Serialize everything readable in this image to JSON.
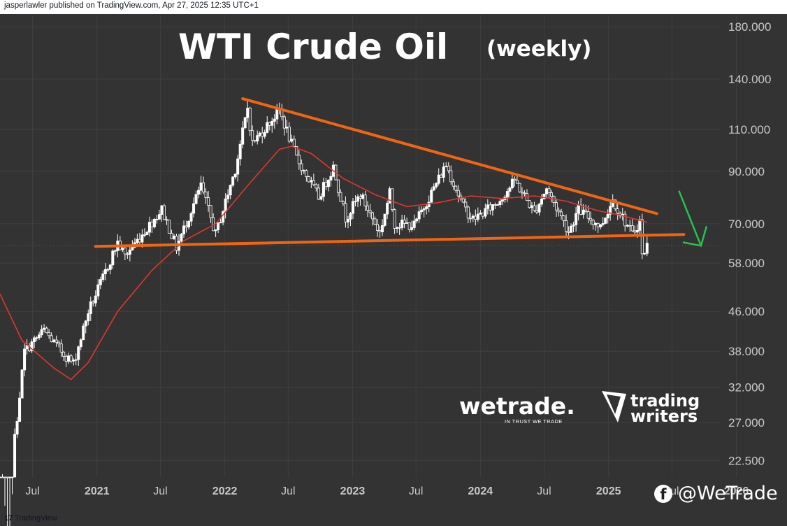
{
  "publisher": "jasperlawler published on TradingView.com, Apr 27, 2025 12:35 UTC+1",
  "footer": {
    "logo": "17",
    "brand": "TradingView"
  },
  "social": {
    "icon": "facebook-icon",
    "handle": "@WeTrade"
  },
  "logos": {
    "wetrade": {
      "name": "wetrade.",
      "tagline": "IN TRUST WE TRADE"
    },
    "trading_writers": {
      "line1": "trading",
      "line2": "writers"
    }
  },
  "colors": {
    "background": "#333333",
    "candle": "#ffffff",
    "ma": "#e0362b",
    "trendline": "#f06514",
    "arrow": "#27c24c",
    "axis_text": "#c8c8c8"
  },
  "chart_data": {
    "type": "candlestick",
    "title": "WTI Crude Oil",
    "subtitle": "(weekly)",
    "scale": "log",
    "ylim": [
      20.8,
      190
    ],
    "y_ticks": [
      22.5,
      27,
      32,
      38,
      46,
      58,
      70,
      90,
      110,
      140,
      180
    ],
    "y_tick_labels": [
      "22.500",
      "27.000",
      "32.000",
      "38.000",
      "46.000",
      "58.000",
      "70.000",
      "90.000",
      "110.000",
      "140.000",
      "180.000"
    ],
    "x_range": [
      "2020-03-30",
      "2025-11-15"
    ],
    "x_ticks": [
      {
        "date": "2020-07-01",
        "label": "Jul",
        "year": false
      },
      {
        "date": "2021-01-01",
        "label": "2021",
        "year": true
      },
      {
        "date": "2021-07-01",
        "label": "Jul",
        "year": false
      },
      {
        "date": "2022-01-01",
        "label": "2022",
        "year": true
      },
      {
        "date": "2022-07-01",
        "label": "Jul",
        "year": false
      },
      {
        "date": "2023-01-01",
        "label": "2023",
        "year": true
      },
      {
        "date": "2023-07-01",
        "label": "Jul",
        "year": false
      },
      {
        "date": "2024-01-01",
        "label": "2024",
        "year": true
      },
      {
        "date": "2024-07-01",
        "label": "Jul",
        "year": false
      },
      {
        "date": "2025-01-01",
        "label": "2025",
        "year": true
      },
      {
        "date": "2025-07-01",
        "label": "Jul",
        "year": false
      },
      {
        "date": "2026-01-01",
        "label": "2026",
        "year": true
      }
    ],
    "current_price": 63.1,
    "price_anchors": [
      [
        "2020-03-30",
        20.5
      ],
      [
        "2020-04-20",
        12.0
      ],
      [
        "2020-05-11",
        25.0
      ],
      [
        "2020-06-08",
        38.0
      ],
      [
        "2020-08-03",
        42.0
      ],
      [
        "2020-09-07",
        39.0
      ],
      [
        "2020-10-26",
        35.8
      ],
      [
        "2020-12-07",
        46.0
      ],
      [
        "2021-01-11",
        52.5
      ],
      [
        "2021-03-01",
        64.0
      ],
      [
        "2021-03-22",
        60.0
      ],
      [
        "2021-07-05",
        75.0
      ],
      [
        "2021-08-16",
        62.5
      ],
      [
        "2021-10-25",
        84.0
      ],
      [
        "2021-12-06",
        66.5
      ],
      [
        "2022-01-31",
        91.0
      ],
      [
        "2022-03-07",
        122.0
      ],
      [
        "2022-03-21",
        103.0
      ],
      [
        "2022-06-06",
        120.5
      ],
      [
        "2022-07-25",
        96.0
      ],
      [
        "2022-09-26",
        79.5
      ],
      [
        "2022-11-07",
        92.0
      ],
      [
        "2022-12-12",
        72.0
      ],
      [
        "2023-01-23",
        80.5
      ],
      [
        "2023-03-20",
        67.0
      ],
      [
        "2023-04-17",
        81.0
      ],
      [
        "2023-05-01",
        70.0
      ],
      [
        "2023-06-26",
        69.5
      ],
      [
        "2023-09-25",
        93.0
      ],
      [
        "2023-11-13",
        76.0
      ],
      [
        "2023-12-11",
        71.5
      ],
      [
        "2024-02-19",
        77.5
      ],
      [
        "2024-04-08",
        86.0
      ],
      [
        "2024-06-03",
        74.0
      ],
      [
        "2024-07-08",
        83.0
      ],
      [
        "2024-09-09",
        67.5
      ],
      [
        "2024-10-07",
        75.0
      ],
      [
        "2024-12-09",
        69.0
      ],
      [
        "2025-01-13",
        78.5
      ],
      [
        "2025-03-10",
        66.5
      ],
      [
        "2025-03-31",
        71.0
      ],
      [
        "2025-04-07",
        60.0
      ],
      [
        "2025-04-21",
        63.1
      ]
    ],
    "moving_average": [
      [
        "2020-03-30",
        50.0
      ],
      [
        "2020-06-01",
        40.0
      ],
      [
        "2020-09-01",
        35.0
      ],
      [
        "2020-10-19",
        33.2
      ],
      [
        "2020-12-07",
        36.0
      ],
      [
        "2021-03-01",
        46.0
      ],
      [
        "2021-06-07",
        56.0
      ],
      [
        "2021-09-06",
        64.5
      ],
      [
        "2021-12-06",
        70.0
      ],
      [
        "2022-03-07",
        84.0
      ],
      [
        "2022-06-06",
        100.0
      ],
      [
        "2022-07-11",
        101.5
      ],
      [
        "2022-09-05",
        98.0
      ],
      [
        "2022-12-05",
        87.0
      ],
      [
        "2023-03-06",
        80.5
      ],
      [
        "2023-06-05",
        76.0
      ],
      [
        "2023-09-04",
        77.5
      ],
      [
        "2023-12-04",
        80.0
      ],
      [
        "2024-03-04",
        79.0
      ],
      [
        "2024-06-03",
        80.0
      ],
      [
        "2024-09-02",
        78.0
      ],
      [
        "2024-12-02",
        74.5
      ],
      [
        "2025-02-03",
        73.0
      ],
      [
        "2025-04-21",
        70.5
      ]
    ],
    "trendlines": [
      {
        "name": "resistance",
        "from": [
          "2022-02-21",
          127.5
        ],
        "to": [
          "2025-05-19",
          73.5
        ]
      },
      {
        "name": "support",
        "from": [
          "2020-12-28",
          62.8
        ],
        "to": [
          "2025-08-04",
          66.5
        ]
      }
    ],
    "arrow": {
      "from": [
        "2025-07-21",
        82.0
      ],
      "to": [
        "2025-09-22",
        63.0
      ]
    }
  }
}
